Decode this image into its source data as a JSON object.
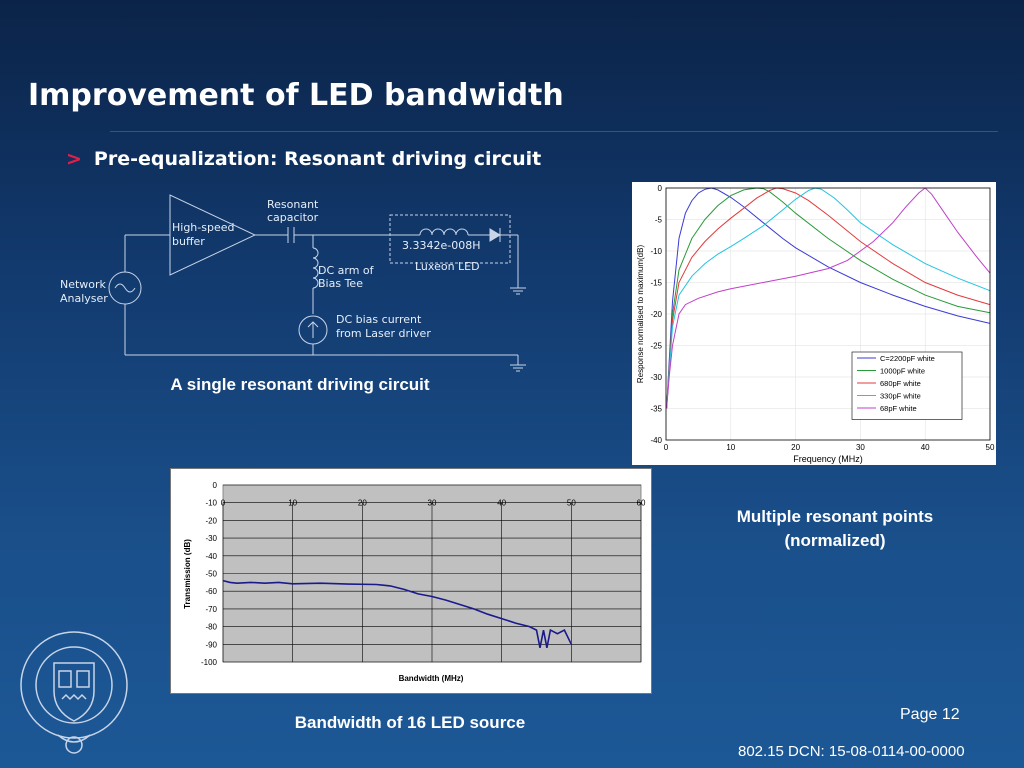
{
  "slide": {
    "title": "Improvement of LED bandwidth",
    "bullet_mark": ">",
    "bullet_text": "Pre-equalization: Resonant driving circuit",
    "caption_circuit": "A single resonant driving circuit",
    "caption_resonant_line1": "Multiple resonant points",
    "caption_resonant_line2": "(normalized)",
    "caption_bandwidth": "Bandwidth of 16 LED source",
    "page_label": "Page 12",
    "dcn": "802.15 DCN: 15-08-0114-00-0000"
  },
  "circuit": {
    "high_speed_buffer": [
      "High-speed",
      "buffer"
    ],
    "resonant_capacitor": [
      "Resonant",
      "capacitor"
    ],
    "network_analyser": [
      "Network",
      "Analyser"
    ],
    "dc_arm": [
      "DC arm of",
      "Bias Tee"
    ],
    "dc_bias": [
      "DC bias current",
      "from Laser driver"
    ],
    "inductor_value": "3.3342e-008H",
    "led_label": "Luxeon LED"
  },
  "chart_data": [
    {
      "type": "line",
      "xlabel": "Frequency (MHz)",
      "ylabel": "Response normalised to maximum(dB)",
      "xlim": [
        0,
        50
      ],
      "ylim": [
        -40,
        0
      ],
      "xticks": [
        0,
        10,
        20,
        30,
        40,
        50
      ],
      "yticks": [
        0,
        -5,
        -10,
        -15,
        -20,
        -25,
        -30,
        -35,
        -40
      ],
      "legend_position": "bottom-right",
      "series": [
        {
          "name": "C=2200pF white",
          "color": "#3b3bd6",
          "x": [
            0.1,
            1,
            2,
            3,
            4,
            5,
            6,
            7,
            8,
            10,
            12,
            15,
            18,
            20,
            25,
            30,
            35,
            40,
            45,
            50
          ],
          "y": [
            -35,
            -18,
            -8,
            -4,
            -2,
            -0.8,
            -0.2,
            0,
            -0.3,
            -1.5,
            -3,
            -5.5,
            -8,
            -9.5,
            -12.5,
            -15,
            -17,
            -18.8,
            -20.3,
            -21.5
          ]
        },
        {
          "name": "1000pF white",
          "color": "#2a9a3a",
          "x": [
            0.1,
            1,
            2,
            4,
            6,
            8,
            10,
            12,
            14,
            15,
            16,
            18,
            20,
            25,
            30,
            35,
            40,
            45,
            50
          ],
          "y": [
            -35,
            -20,
            -13,
            -8,
            -5,
            -2.8,
            -1.2,
            -0.3,
            0,
            -0.1,
            -0.6,
            -2.2,
            -4,
            -8,
            -11.5,
            -14.5,
            -17,
            -18.8,
            -19.8
          ]
        },
        {
          "name": "680pF white",
          "color": "#e23b3b",
          "x": [
            0.1,
            1,
            2,
            4,
            6,
            8,
            10,
            12,
            14,
            16,
            17,
            18,
            20,
            22,
            25,
            30,
            35,
            40,
            45,
            50
          ],
          "y": [
            -35,
            -21,
            -15,
            -11,
            -8.5,
            -6.5,
            -4.8,
            -3.2,
            -1.6,
            -0.4,
            0,
            -0.1,
            -0.8,
            -2,
            -4.3,
            -8.5,
            -12,
            -15,
            -17,
            -18.5
          ]
        },
        {
          "name": "330pF white",
          "color": "#22c4e0",
          "x": [
            0.1,
            1,
            2,
            4,
            6,
            8,
            10,
            12,
            15,
            18,
            20,
            22,
            23,
            24,
            26,
            28,
            30,
            35,
            40,
            45,
            50
          ],
          "y": [
            -35,
            -22,
            -17,
            -14,
            -12,
            -10.5,
            -9.3,
            -8,
            -6,
            -3.5,
            -1.8,
            -0.4,
            0,
            -0.2,
            -1.6,
            -3.5,
            -5.5,
            -9,
            -12,
            -14.3,
            -16.3
          ]
        },
        {
          "name": "68pF white",
          "color": "#c040c8",
          "x": [
            0.1,
            0.5,
            1,
            2,
            3,
            5,
            8,
            10,
            15,
            20,
            25,
            28,
            30,
            32,
            35,
            37,
            39,
            40,
            41,
            43,
            45,
            48,
            50
          ],
          "y": [
            -35,
            -30,
            -25,
            -20,
            -18.5,
            -17.5,
            -16.5,
            -16,
            -15,
            -14,
            -12.8,
            -11.5,
            -10,
            -8.5,
            -5.5,
            -3,
            -0.8,
            0,
            -1,
            -4,
            -7,
            -11,
            -13.5
          ]
        }
      ]
    },
    {
      "type": "line",
      "xlabel": "Bandwidth (MHz)",
      "ylabel": "Transmission (dB)",
      "xlim": [
        0,
        60
      ],
      "ylim": [
        -100,
        0
      ],
      "xticks": [
        0,
        10,
        20,
        30,
        40,
        50,
        60
      ],
      "yticks": [
        0,
        -10,
        -20,
        -30,
        -40,
        -50,
        -60,
        -70,
        -80,
        -90,
        -100
      ],
      "background": "#c0c0c0",
      "series": [
        {
          "name": "",
          "color": "#1a1a8c",
          "x": [
            0,
            1,
            2,
            4,
            6,
            8,
            10,
            14,
            18,
            22,
            24,
            26,
            28,
            30,
            32,
            34,
            36,
            38,
            40,
            42,
            44,
            45,
            45.5,
            46,
            46.5,
            47,
            48,
            49,
            50
          ],
          "y": [
            -54,
            -55,
            -55.5,
            -55,
            -55.5,
            -55,
            -55.8,
            -55.5,
            -56,
            -56.2,
            -57,
            -59,
            -61.5,
            -63,
            -65,
            -67.5,
            -70,
            -73,
            -75.5,
            -78,
            -80,
            -82,
            -92,
            -82,
            -92,
            -82,
            -84,
            -82,
            -90
          ]
        }
      ]
    }
  ]
}
